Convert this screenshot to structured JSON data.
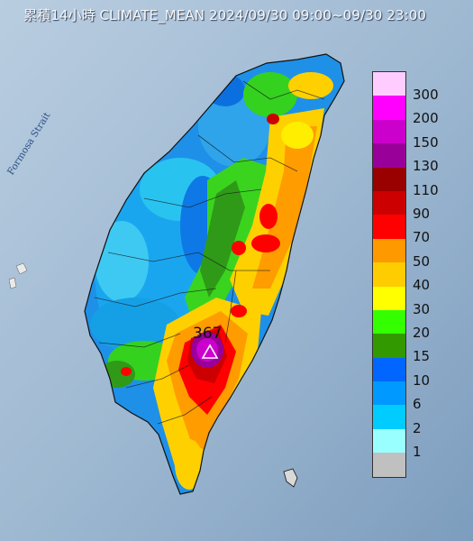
{
  "title": "累積14小時 CLIMATE_MEAN 2024/09/30 09:00~09/30 23:00",
  "strait_label": "Formosa Strait",
  "max_label": "367",
  "legend": [
    {
      "label": "300",
      "color": "#ffccff"
    },
    {
      "label": "200",
      "color": "#ff00ff"
    },
    {
      "label": "150",
      "color": "#cc00cc"
    },
    {
      "label": "130",
      "color": "#990099"
    },
    {
      "label": "110",
      "color": "#990000"
    },
    {
      "label": "90",
      "color": "#cc0000"
    },
    {
      "label": "70",
      "color": "#ff0000"
    },
    {
      "label": "50",
      "color": "#ff9900"
    },
    {
      "label": "40",
      "color": "#ffcc00"
    },
    {
      "label": "30",
      "color": "#ffff00"
    },
    {
      "label": "20",
      "color": "#33ff00"
    },
    {
      "label": "15",
      "color": "#339900"
    },
    {
      "label": "10",
      "color": "#0066ff"
    },
    {
      "label": "6",
      "color": "#0099ff"
    },
    {
      "label": "2",
      "color": "#00ccff"
    },
    {
      "label": "1",
      "color": "#99ffff"
    },
    {
      "label": "",
      "color": "#c0c0c0"
    }
  ]
}
